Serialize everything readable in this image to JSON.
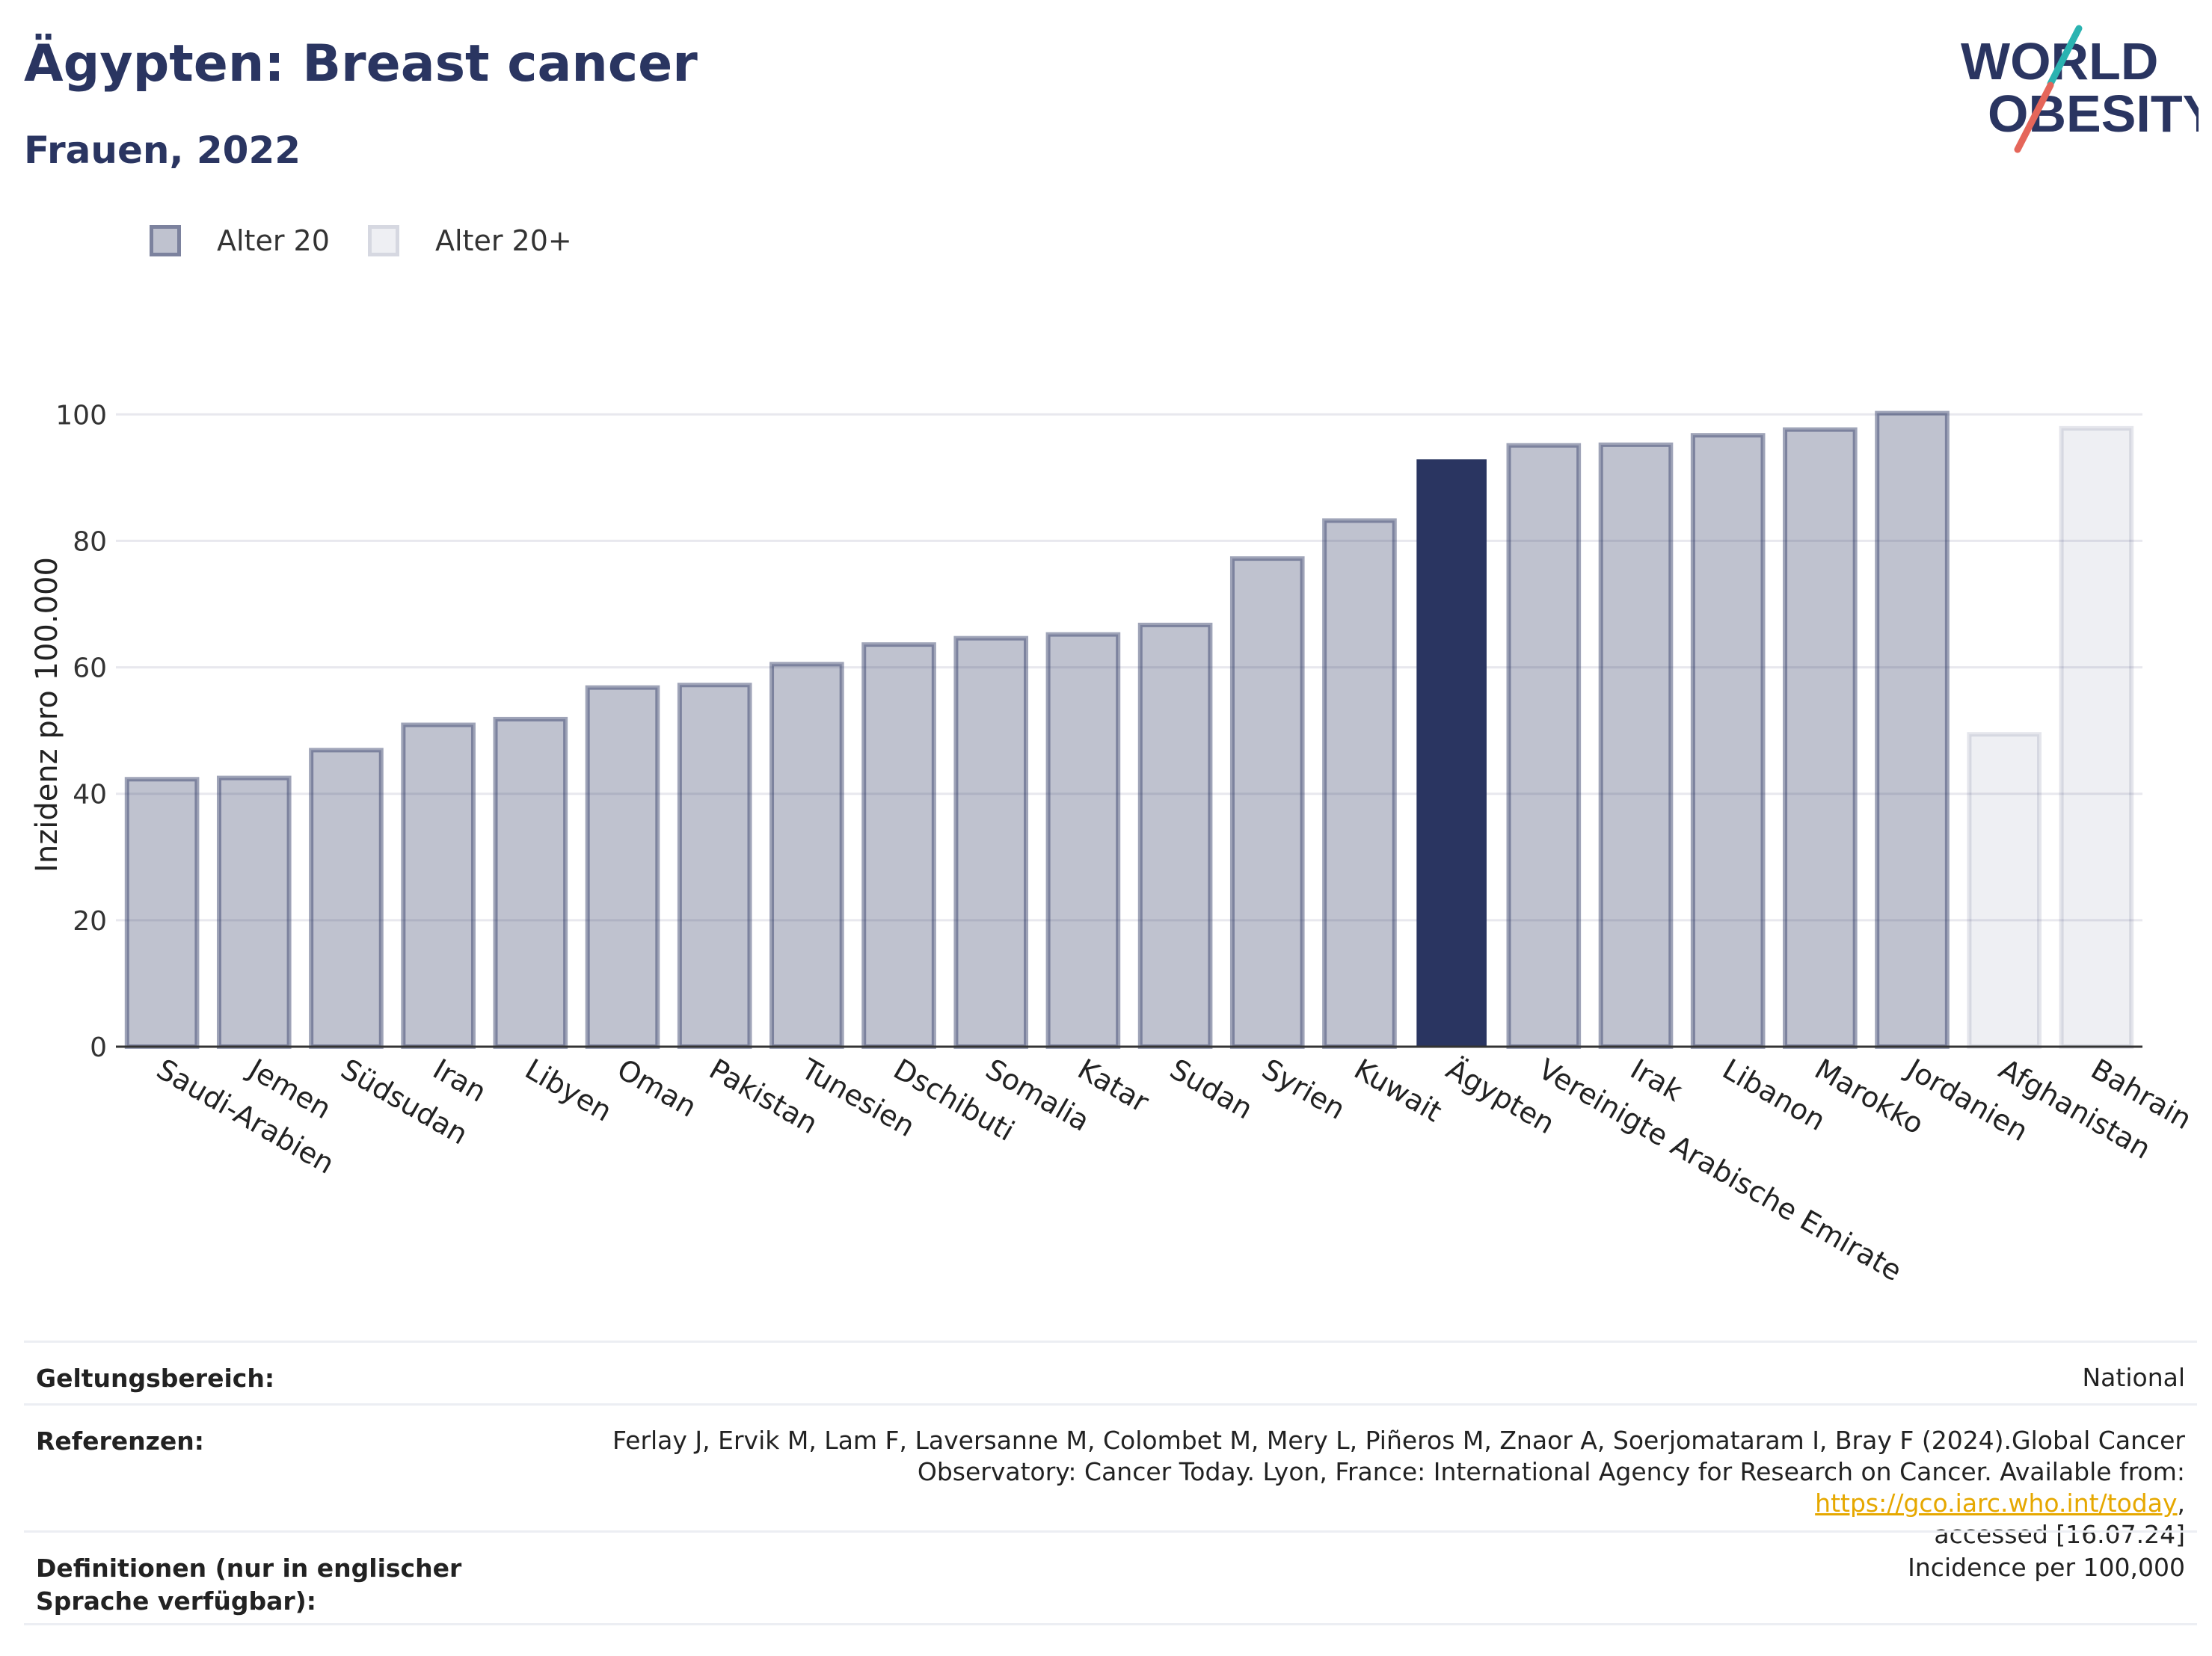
{
  "header": {
    "title": "Ägypten: Breast cancer",
    "subtitle": "Frauen, 2022"
  },
  "logo": {
    "line1": "WORLD",
    "line2": "OBESITY",
    "colors": {
      "text": "#2a3561",
      "slash_teal": "#2bb3b1",
      "slash_coral": "#e5665a"
    }
  },
  "legend": [
    {
      "label": "Alter 20",
      "color": "#2a3561"
    },
    {
      "label": "Alter 20+",
      "color": "#2a3561"
    }
  ],
  "chart_data": {
    "type": "bar",
    "title": "Ägypten: Breast cancer",
    "subtitle": "Frauen, 2022",
    "xlabel": "",
    "ylabel": "Inzidenz pro 100.000",
    "ylim": [
      0,
      105
    ],
    "yticks": [
      0,
      20,
      40,
      60,
      80,
      100
    ],
    "grid": true,
    "legend_position": "top-left",
    "categories": [
      "Saudi-Arabien",
      "Jemen",
      "Südsudan",
      "Iran",
      "Libyen",
      "Oman",
      "Pakistan",
      "Tunesien",
      "Dschibuti",
      "Somalia",
      "Katar",
      "Sudan",
      "Syrien",
      "Kuwait",
      "Ägypten",
      "Vereinigte Arabische Emirate",
      "Irak",
      "Libanon",
      "Marokko",
      "Jordanien",
      "Afghanistan",
      "Bahrain"
    ],
    "values": [
      42.3,
      42.5,
      46.9,
      50.9,
      51.8,
      56.8,
      57.2,
      60.5,
      63.6,
      64.6,
      65.2,
      66.7,
      77.2,
      83.2,
      92.9,
      95.1,
      95.2,
      96.7,
      97.6,
      100.2,
      49.4,
      97.8
    ],
    "group": [
      "Alter 20",
      "Alter 20",
      "Alter 20",
      "Alter 20",
      "Alter 20",
      "Alter 20",
      "Alter 20",
      "Alter 20",
      "Alter 20",
      "Alter 20",
      "Alter 20",
      "Alter 20",
      "Alter 20",
      "Alter 20",
      "Alter 20",
      "Alter 20",
      "Alter 20",
      "Alter 20",
      "Alter 20",
      "Alter 20",
      "Alter 20+",
      "Alter 20+"
    ],
    "highlight": "Ägypten",
    "colors": {
      "base_fill": "#2a3561",
      "highlight": "#2a3561",
      "grid": "#e8e8ee",
      "axis": "#333333"
    }
  },
  "footer": {
    "rows": [
      {
        "label": "Geltungsbereich:",
        "value": "National"
      },
      {
        "label": "Referenzen:",
        "value_line1": "Ferlay J, Ervik M, Lam F, Laversanne M, Colombet M, Mery L, Piñeros M, Znaor A, Soerjomataram I, Bray F (2024).Global Cancer",
        "value_line2_pre": "Observatory: Cancer Today. Lyon, France: International Agency for Research on Cancer. Available from: ",
        "value_link": "https://gco.iarc.who.int/today",
        "value_line2_post": ",",
        "value_line3": "accessed [16.07.24]"
      },
      {
        "label": "Definitionen (nur in englischer Sprache verfügbar):",
        "value": "Incidence per 100,000"
      }
    ]
  }
}
